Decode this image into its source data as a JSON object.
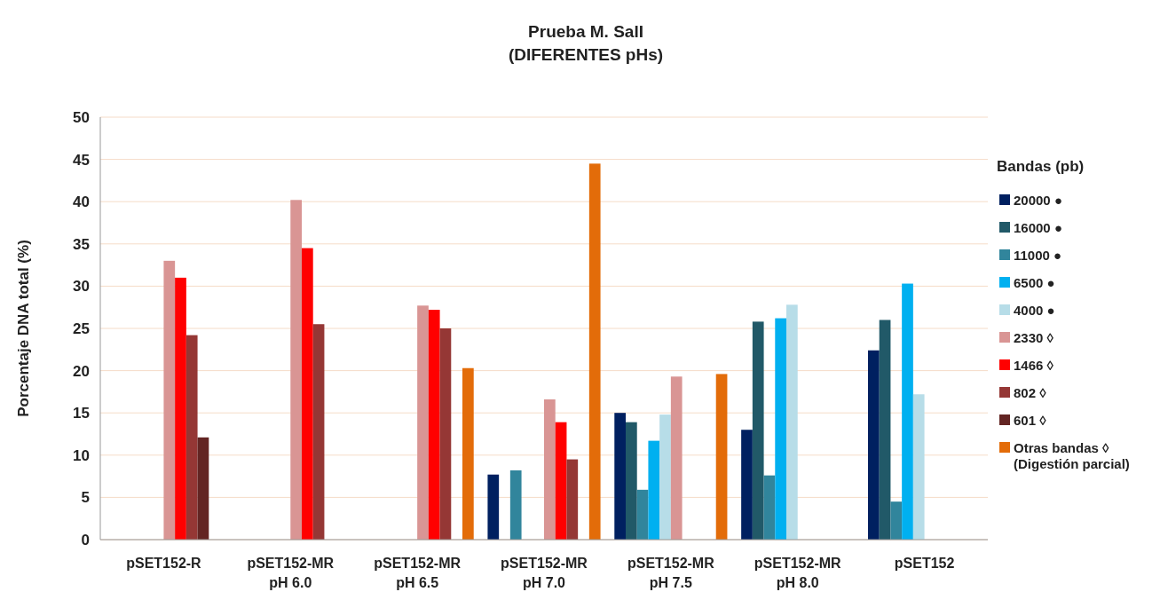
{
  "chart_data": {
    "type": "bar",
    "title": "Prueba M. SalI\n(DIFERENTES pHs)",
    "ylabel": "Porcentaje DNA total (%)",
    "legend_title": "Bandas (pb)",
    "categories": [
      "pSET152-R",
      "pSET152-MR\npH 6.0",
      "pSET152-MR\npH 6.5",
      "pSET152-MR\npH 7.0",
      "pSET152-MR\npH 7.5",
      "pSET152-MR\npH 8.0",
      "pSET152"
    ],
    "series": [
      {
        "name": "20000 ●",
        "color": "#002060",
        "values": [
          null,
          null,
          null,
          7.7,
          15,
          13,
          22.4
        ]
      },
      {
        "name": "16000 ●",
        "color": "#215968",
        "values": [
          null,
          null,
          null,
          null,
          13.9,
          25.8,
          26
        ]
      },
      {
        "name": "11000 ●",
        "color": "#31859c",
        "values": [
          null,
          null,
          null,
          8.2,
          5.9,
          7.6,
          4.5
        ]
      },
      {
        "name": "6500 ●",
        "color": "#00b0f0",
        "values": [
          null,
          null,
          null,
          null,
          11.7,
          26.2,
          30.3
        ]
      },
      {
        "name": "4000 ●",
        "color": "#b7dde8",
        "values": [
          null,
          null,
          null,
          null,
          14.8,
          27.8,
          17.2
        ]
      },
      {
        "name": "2330 ◊",
        "color": "#d99594",
        "values": [
          33,
          40.2,
          27.7,
          16.6,
          19.3,
          null,
          null
        ]
      },
      {
        "name": "1466 ◊",
        "color": "#ff0000",
        "values": [
          31,
          34.5,
          27.2,
          13.9,
          null,
          null,
          null
        ]
      },
      {
        "name": "802 ◊",
        "color": "#953735",
        "values": [
          24.2,
          25.5,
          25,
          9.5,
          null,
          null,
          null
        ]
      },
      {
        "name": "601 ◊",
        "color": "#632523",
        "values": [
          12.1,
          null,
          null,
          null,
          null,
          null,
          null
        ]
      },
      {
        "name": "Otras bandas ◊\n(Digestión parcial)",
        "color": "#e36c09",
        "values": [
          null,
          null,
          20.3,
          44.5,
          19.6,
          null,
          null
        ]
      }
    ],
    "ylim": [
      0,
      50
    ],
    "yticks": [
      0,
      5,
      10,
      15,
      20,
      25,
      30,
      35,
      40,
      45,
      50
    ],
    "grid": "y",
    "legend": "right"
  }
}
